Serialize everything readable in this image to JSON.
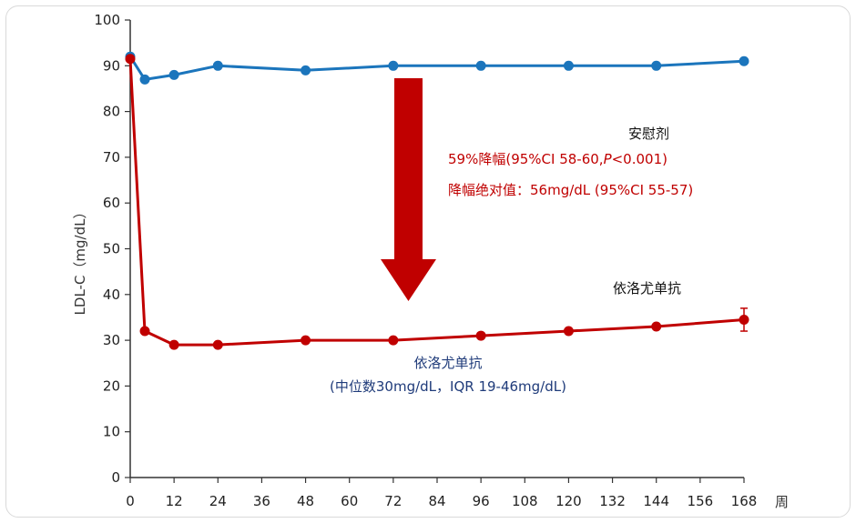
{
  "chart_data": {
    "type": "line",
    "xlabel": "周",
    "ylabel": "LDL-C（mg/dL）",
    "x_ticks": [
      0,
      12,
      24,
      36,
      48,
      60,
      72,
      84,
      96,
      108,
      120,
      132,
      144,
      156,
      168
    ],
    "y_ticks": [
      0,
      10,
      20,
      30,
      40,
      50,
      60,
      70,
      80,
      90,
      100
    ],
    "xlim": [
      0,
      168
    ],
    "ylim": [
      0,
      100
    ],
    "grid": false,
    "series": [
      {
        "name": "安慰剂",
        "color": "#1b75bc",
        "x": [
          0,
          4,
          12,
          24,
          48,
          72,
          96,
          120,
          144,
          168
        ],
        "values": [
          92,
          87,
          88,
          90,
          89,
          90,
          90,
          90,
          90,
          91
        ]
      },
      {
        "name": "依洛尤单抗",
        "color": "#c00000",
        "x": [
          0,
          4,
          12,
          24,
          48,
          72,
          96,
          120,
          144,
          168
        ],
        "values": [
          91.5,
          32,
          29,
          29,
          30,
          30,
          31,
          32,
          33,
          34.5
        ],
        "error_last": [
          32,
          37
        ]
      }
    ],
    "annotations": {
      "placebo_label": "安慰剂",
      "reduction_pct_prefix": "59%降幅(95%CI 58-60,",
      "reduction_pct_p": "P",
      "reduction_pct_suffix": "<0.001)",
      "reduction_abs": "降幅绝对值：56mg/dL (95%CI 55-57)",
      "evolocumab_label": "依洛尤单抗",
      "evolocumab_label_2": "依洛尤单抗",
      "median_note": "(中位数30mg/dL，IQR 19-46mg/dL)"
    },
    "arrow_color": "#c00000"
  }
}
